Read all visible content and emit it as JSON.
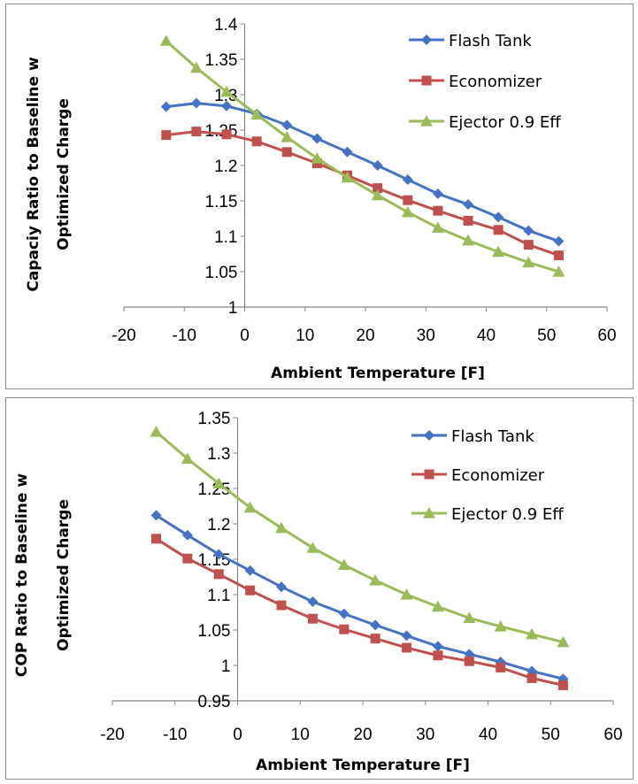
{
  "colors": {
    "flash_tank": "#4472C4",
    "economizer": "#C0504D",
    "ejector": "#9BBB59"
  },
  "chart_data": [
    {
      "type": "line",
      "xlabel": "Ambient Temperature [F]",
      "ylabel_line1": "Capaciy Ratio to Baseline w",
      "ylabel_line2": "Optimized Charge",
      "xlim": [
        -20,
        60
      ],
      "ylim": [
        1,
        1.4
      ],
      "xticks": [
        "-20",
        "-10",
        "0",
        "10",
        "20",
        "30",
        "40",
        "50",
        "60"
      ],
      "yticks": [
        "1",
        "1.05",
        "1.1",
        "1.15",
        "1.2",
        "1.25",
        "1.3",
        "1.35",
        "1.4"
      ],
      "legend_position": "top-right",
      "grid": false,
      "x": [
        -13,
        -8,
        -3,
        2,
        7,
        12,
        17,
        22,
        27,
        32,
        37,
        42,
        47,
        52
      ],
      "series": [
        {
          "name": "Flash Tank",
          "marker": "diamond",
          "values": [
            1.283,
            1.288,
            1.284,
            1.273,
            1.257,
            1.238,
            1.219,
            1.2,
            1.18,
            1.16,
            1.145,
            1.127,
            1.108,
            1.093
          ]
        },
        {
          "name": "Economizer",
          "marker": "square",
          "values": [
            1.243,
            1.248,
            1.244,
            1.234,
            1.219,
            1.203,
            1.186,
            1.168,
            1.151,
            1.136,
            1.122,
            1.109,
            1.088,
            1.073
          ]
        },
        {
          "name": "Ejector 0.9 Eff",
          "marker": "triangle",
          "values": [
            1.376,
            1.338,
            1.304,
            1.272,
            1.24,
            1.21,
            1.183,
            1.158,
            1.134,
            1.112,
            1.094,
            1.078,
            1.063,
            1.05
          ]
        }
      ]
    },
    {
      "type": "line",
      "xlabel": "Ambient Temperature [F]",
      "ylabel_line1": "COP Ratio to Baseline w",
      "ylabel_line2": "Optimized Charge",
      "xlim": [
        -20,
        60
      ],
      "ylim": [
        0.95,
        1.35
      ],
      "xticks": [
        "-20",
        "-10",
        "0",
        "10",
        "20",
        "30",
        "40",
        "50",
        "60"
      ],
      "yticks": [
        "0.95",
        "1",
        "1.05",
        "1.1",
        "1.15",
        "1.2",
        "1.25",
        "1.3",
        "1.35"
      ],
      "legend_position": "top-right",
      "grid": false,
      "x": [
        -13,
        -8,
        -3,
        2,
        7,
        12,
        17,
        22,
        27,
        32,
        37,
        42,
        47,
        52
      ],
      "series": [
        {
          "name": "Flash Tank",
          "marker": "diamond",
          "values": [
            1.212,
            1.184,
            1.157,
            1.134,
            1.111,
            1.09,
            1.073,
            1.057,
            1.042,
            1.027,
            1.016,
            1.005,
            0.992,
            0.981
          ]
        },
        {
          "name": "Economizer",
          "marker": "square",
          "values": [
            1.179,
            1.151,
            1.129,
            1.106,
            1.085,
            1.066,
            1.051,
            1.038,
            1.025,
            1.014,
            1.006,
            0.997,
            0.982,
            0.972
          ]
        },
        {
          "name": "Ejector 0.9 Eff",
          "marker": "triangle",
          "values": [
            1.33,
            1.292,
            1.257,
            1.223,
            1.194,
            1.166,
            1.142,
            1.12,
            1.1,
            1.083,
            1.067,
            1.055,
            1.044,
            1.033
          ]
        }
      ]
    }
  ]
}
